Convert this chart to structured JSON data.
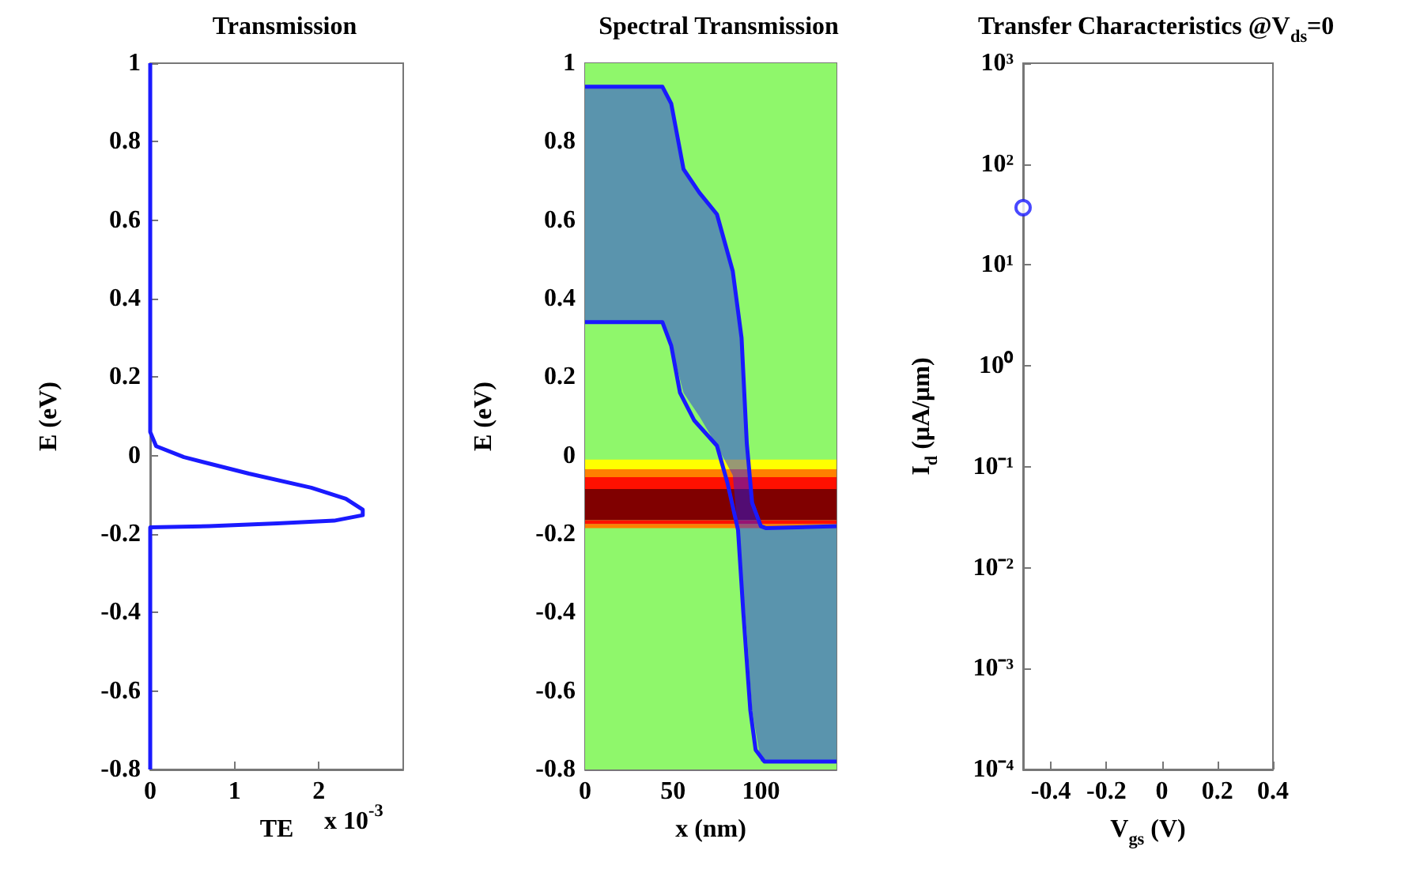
{
  "chart_data": [
    {
      "type": "line",
      "title": "Transmission",
      "xlabel": "TE",
      "ylabel": "E (eV)",
      "annotations": [
        "x 10$^{-3}$"
      ],
      "xlim": [
        0,
        3
      ],
      "xticks": [
        0,
        1,
        2
      ],
      "ylim": [
        -0.8,
        1
      ],
      "yticks": [
        -0.8,
        -0.6,
        -0.4,
        -0.2,
        0,
        0.2,
        0.4,
        0.6,
        0.8,
        1
      ],
      "series": [
        {
          "color": "#1a1aff",
          "x": [
            0,
            0,
            0.07,
            0.4,
            1.17,
            1.91,
            2.32,
            2.52,
            2.52,
            2.18,
            1.51,
            0.7,
            0,
            0
          ],
          "values": [
            1,
            0.06,
            0.024,
            -0.004,
            -0.046,
            -0.082,
            -0.11,
            -0.138,
            -0.152,
            -0.166,
            -0.173,
            -0.18,
            -0.183,
            -0.8
          ]
        }
      ]
    },
    {
      "type": "line",
      "title": "Spectral Transmission",
      "xlabel": "x (nm)",
      "ylabel": "E (eV)",
      "xlim": [
        0,
        143
      ],
      "xticks": [
        0,
        50,
        100
      ],
      "ylim": [
        -0.8,
        1
      ],
      "yticks": [
        -0.8,
        -0.6,
        -0.4,
        -0.2,
        0,
        0.2,
        0.4,
        0.6,
        0.8,
        1
      ],
      "bands": [
        {
          "axis": "y",
          "from": -0.8,
          "to": 1,
          "color": "#8ff76b"
        },
        {
          "axis": "y",
          "from": -0.035,
          "to": -0.01,
          "color": "#ffff00"
        },
        {
          "axis": "y",
          "from": -0.055,
          "to": -0.035,
          "color": "#ff8000"
        },
        {
          "axis": "y",
          "from": -0.085,
          "to": -0.055,
          "color": "#ff1000"
        },
        {
          "axis": "y",
          "from": -0.165,
          "to": -0.085,
          "color": "#800000"
        },
        {
          "axis": "y",
          "from": -0.175,
          "to": -0.165,
          "color": "#ff1000"
        },
        {
          "axis": "y",
          "from": -0.185,
          "to": -0.175,
          "color": "#ff8000"
        }
      ],
      "series": [
        {
          "color": "#1a1aff",
          "x": [
            0,
            44,
            49,
            56,
            65,
            75,
            84,
            89,
            92,
            95,
            100,
            103,
            143
          ],
          "values": [
            0.94,
            0.94,
            0.897,
            0.73,
            0.67,
            0.615,
            0.47,
            0.3,
            0.03,
            -0.12,
            -0.18,
            -0.185,
            -0.18
          ],
          "lower": [
            0.34,
            0.34,
            0.28,
            0.16,
            0.1,
            0.025,
            -0.05,
            -0.3,
            -0.45,
            -0.65,
            -0.78,
            -0.78,
            -0.78
          ],
          "upper": [
            0.94,
            0.94,
            0.897,
            0.73,
            0.67,
            0.615,
            0.47,
            0.3,
            0.03,
            -0.12,
            -0.18,
            -0.185,
            -0.18
          ]
        },
        {
          "color": "#1a1aff",
          "x": [
            0,
            44,
            49,
            54,
            62,
            75,
            81,
            87,
            90,
            94,
            97,
            102,
            143
          ],
          "values": [
            0.34,
            0.34,
            0.28,
            0.16,
            0.09,
            0.025,
            -0.07,
            -0.19,
            -0.4,
            -0.65,
            -0.75,
            -0.78,
            -0.78
          ]
        }
      ]
    },
    {
      "type": "scatter",
      "title": "Transfer Characteristics @V$_{ds}$=0",
      "xlabel": "V$_{gs}$ (V)",
      "ylabel": "I$_{d}$ (μA/μm)",
      "log": "y",
      "marker": "circle",
      "xlim": [
        -0.5,
        0.4
      ],
      "xticks": [
        -0.4,
        -0.2,
        0,
        0.2,
        0.4
      ],
      "ylim": [
        0.0001,
        1000
      ],
      "yticks": [
        {
          "value": 0.0001,
          "label": "10⁻⁴"
        },
        {
          "value": 0.001,
          "label": "10⁻³"
        },
        {
          "value": 0.01,
          "label": "10⁻²"
        },
        {
          "value": 0.1,
          "label": "10⁻¹"
        },
        {
          "value": 1,
          "label": "10⁰"
        },
        {
          "value": 10,
          "label": "10¹"
        },
        {
          "value": 100,
          "label": "10²"
        },
        {
          "value": 1000,
          "label": "10³"
        }
      ],
      "series": [
        {
          "color": "#1a1aff",
          "x": [
            -0.5
          ],
          "values": [
            37
          ]
        }
      ]
    }
  ]
}
